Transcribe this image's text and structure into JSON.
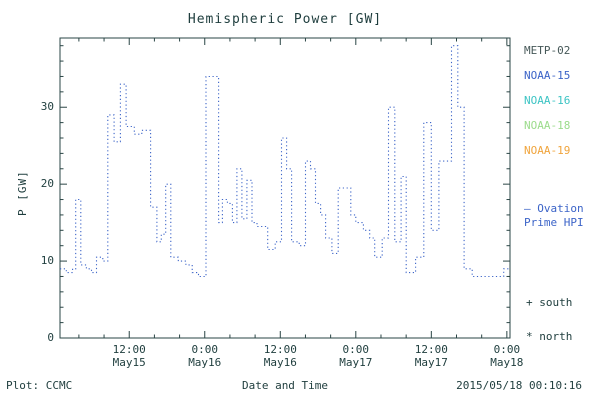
{
  "title": "Hemispheric Power [GW]",
  "y_axis": {
    "label": "P [GW]"
  },
  "x_axis": {
    "label": "Date and Time"
  },
  "footer": {
    "left": "Plot: CCMC",
    "timestamp": "2015/05/18 00:10:16"
  },
  "legend": {
    "satellites": [
      {
        "label": "METP-02",
        "color": "#465858"
      },
      {
        "label": "NOAA-15",
        "color": "#3c64c8"
      },
      {
        "label": "NOAA-16",
        "color": "#3cc4c4"
      },
      {
        "label": "NOAA-18",
        "color": "#9cdc8c"
      },
      {
        "label": "NOAA-19",
        "color": "#f0a43c"
      }
    ],
    "ovation_line1": "– Ovation",
    "ovation_line2": "Prime HPI",
    "ovation_color": "#3c64c8",
    "south": "+ south",
    "north": "* north"
  },
  "chart_data": {
    "type": "line",
    "subtype": "step",
    "line_style": "dotted",
    "line_color": "#3c64c8",
    "frame_color": "#2a4545",
    "title": "Hemispheric Power [GW]",
    "xlabel": "Date and Time",
    "ylabel": "P [GW]",
    "x_unit": "hours since 2015-05-15 00:00 UT",
    "xlim": [
      1,
      72.5
    ],
    "ylim": [
      0,
      39
    ],
    "yticks": [
      0,
      10,
      20,
      30
    ],
    "y_minor_step": 2,
    "x_minor_step": 4,
    "xticks": [
      {
        "hour": 12,
        "time": "12:00",
        "date": "May15"
      },
      {
        "hour": 24,
        "time": "0:00",
        "date": "May16"
      },
      {
        "hour": 36,
        "time": "12:00",
        "date": "May16"
      },
      {
        "hour": 48,
        "time": "0:00",
        "date": "May17"
      },
      {
        "hour": 60,
        "time": "12:00",
        "date": "May17"
      },
      {
        "hour": 72,
        "time": "0:00",
        "date": "May18"
      }
    ],
    "points": [
      [
        1,
        9
      ],
      [
        2,
        8.5
      ],
      [
        3,
        9
      ],
      [
        3.5,
        18
      ],
      [
        4.3,
        9.5
      ],
      [
        5.2,
        9
      ],
      [
        6,
        8.5
      ],
      [
        6.8,
        10.5
      ],
      [
        7.8,
        10
      ],
      [
        8.6,
        29
      ],
      [
        9.6,
        25.5
      ],
      [
        10.6,
        33
      ],
      [
        11.5,
        27.5
      ],
      [
        12.8,
        26.5
      ],
      [
        14,
        27
      ],
      [
        15.4,
        17
      ],
      [
        16.4,
        12.5
      ],
      [
        17.1,
        13.5
      ],
      [
        17.8,
        20
      ],
      [
        18.6,
        10.5
      ],
      [
        19.8,
        10
      ],
      [
        21,
        9.5
      ],
      [
        22,
        8.5
      ],
      [
        23,
        8
      ],
      [
        24.2,
        34
      ],
      [
        25.4,
        34
      ],
      [
        26.2,
        15
      ],
      [
        26.8,
        18
      ],
      [
        27.6,
        17.5
      ],
      [
        28.4,
        15
      ],
      [
        29.1,
        22
      ],
      [
        29.9,
        15.5
      ],
      [
        30.7,
        20.5
      ],
      [
        31.5,
        15
      ],
      [
        32.3,
        14.5
      ],
      [
        33.2,
        14.5
      ],
      [
        34,
        11.5
      ],
      [
        35.2,
        12.5
      ],
      [
        36.2,
        26
      ],
      [
        37,
        22
      ],
      [
        37.8,
        12.5
      ],
      [
        39,
        12
      ],
      [
        40,
        23
      ],
      [
        40.8,
        22
      ],
      [
        41.6,
        17.5
      ],
      [
        42.4,
        16
      ],
      [
        43.2,
        13
      ],
      [
        44.2,
        11
      ],
      [
        45.2,
        19.5
      ],
      [
        46.4,
        19.5
      ],
      [
        47.2,
        16
      ],
      [
        48,
        15
      ],
      [
        49.2,
        14
      ],
      [
        50.2,
        13
      ],
      [
        51,
        10.5
      ],
      [
        52.2,
        13
      ],
      [
        53.2,
        30
      ],
      [
        54.2,
        12.5
      ],
      [
        55.2,
        21
      ],
      [
        56,
        8.5
      ],
      [
        57.5,
        10.5
      ],
      [
        58.8,
        28
      ],
      [
        60,
        14
      ],
      [
        61.2,
        23
      ],
      [
        62.5,
        23
      ],
      [
        63.2,
        38
      ],
      [
        64.2,
        30
      ],
      [
        65.2,
        9
      ],
      [
        66.5,
        8
      ],
      [
        68,
        8
      ],
      [
        70,
        8
      ],
      [
        71.5,
        9
      ]
    ]
  }
}
